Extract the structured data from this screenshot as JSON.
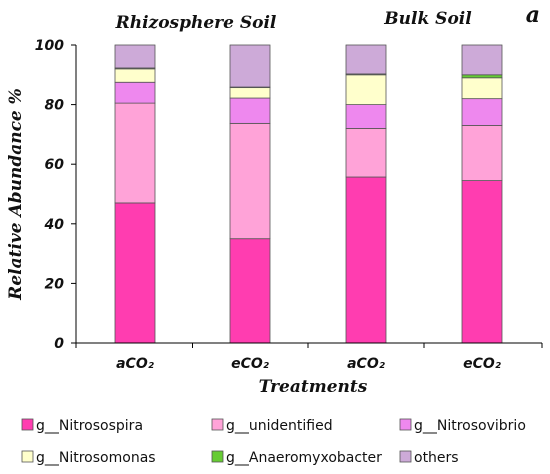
{
  "chart_data": {
    "type": "bar",
    "stacked": true,
    "panel_label": "a",
    "group_labels": [
      "Rhizosphere Soil",
      "Bulk Soil"
    ],
    "xlabel": "Treatments",
    "ylabel": "Relative Abundance %",
    "ylim": [
      0,
      100
    ],
    "yticks": [
      "0",
      "20",
      "40",
      "60",
      "80",
      "100"
    ],
    "categories": [
      "aCO₂",
      "eCO₂",
      "aCO₂",
      "eCO₂"
    ],
    "series": [
      {
        "name": "g__Nitrosospira",
        "color": "#ff3db0",
        "values": [
          47.0,
          35.0,
          55.7,
          54.5
        ]
      },
      {
        "name": "g__unidentified",
        "color": "#ffa3d8",
        "values": [
          33.5,
          38.7,
          16.3,
          18.5
        ]
      },
      {
        "name": "g__Nitrosovibrio",
        "color": "#ee88ee",
        "values": [
          7.0,
          8.5,
          8.0,
          9.0
        ]
      },
      {
        "name": "g__Nitrosomonas",
        "color": "#ffffcc",
        "values": [
          4.5,
          3.5,
          10.0,
          7.0
        ]
      },
      {
        "name": "g__Anaeromyxobacter",
        "color": "#66cc33",
        "values": [
          0.3,
          0.2,
          0.3,
          1.0
        ]
      },
      {
        "name": "others",
        "color": "#cdaad8",
        "values": [
          7.7,
          14.1,
          9.7,
          10.0
        ]
      }
    ],
    "legend_position": "bottom",
    "grid": false
  }
}
